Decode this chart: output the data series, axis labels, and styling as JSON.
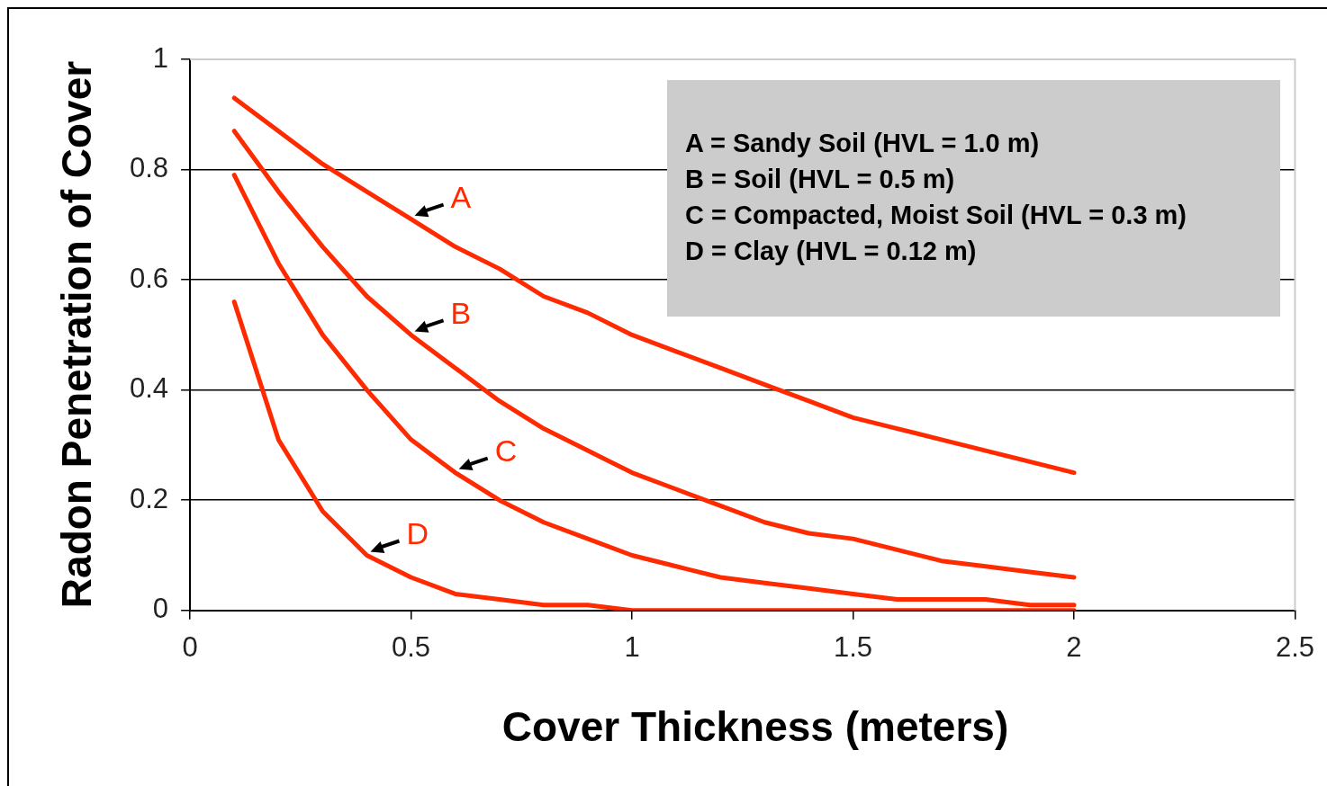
{
  "chart_data": {
    "type": "line",
    "xlabel": "Cover Thickness (meters)",
    "ylabel": "Radon Penetration of Cover",
    "x": [
      0.1,
      0.2,
      0.3,
      0.4,
      0.5,
      0.6,
      0.7,
      0.8,
      0.9,
      1.0,
      1.1,
      1.2,
      1.3,
      1.4,
      1.5,
      1.6,
      1.7,
      1.8,
      1.9,
      2.0
    ],
    "series": [
      {
        "name": "A",
        "color": "#ff2a00",
        "values": [
          0.93,
          0.87,
          0.81,
          0.76,
          0.71,
          0.66,
          0.62,
          0.57,
          0.54,
          0.5,
          0.47,
          0.44,
          0.41,
          0.38,
          0.35,
          0.33,
          0.31,
          0.29,
          0.27,
          0.25
        ]
      },
      {
        "name": "B",
        "color": "#ff2a00",
        "values": [
          0.87,
          0.76,
          0.66,
          0.57,
          0.5,
          0.44,
          0.38,
          0.33,
          0.29,
          0.25,
          0.22,
          0.19,
          0.16,
          0.14,
          0.13,
          0.11,
          0.09,
          0.08,
          0.07,
          0.06
        ]
      },
      {
        "name": "C",
        "color": "#ff2a00",
        "values": [
          0.79,
          0.63,
          0.5,
          0.4,
          0.31,
          0.25,
          0.2,
          0.16,
          0.13,
          0.1,
          0.08,
          0.06,
          0.05,
          0.04,
          0.03,
          0.02,
          0.02,
          0.02,
          0.01,
          0.01
        ]
      },
      {
        "name": "D",
        "color": "#ff2a00",
        "values": [
          0.56,
          0.31,
          0.18,
          0.1,
          0.06,
          0.03,
          0.02,
          0.01,
          0.01,
          0,
          0,
          0,
          0,
          0,
          0,
          0,
          0,
          0,
          0,
          0
        ]
      }
    ],
    "xlim": [
      0,
      2.5
    ],
    "xticks": [
      0,
      0.5,
      1,
      1.5,
      2,
      2.5
    ],
    "ylim": [
      0,
      1
    ],
    "yticks": [
      0,
      0.2,
      0.4,
      0.6,
      0.8,
      1
    ],
    "grid": "y",
    "legend": false,
    "marker": "none",
    "line_style": "solid",
    "annotations": [
      "A = Sandy Soil (HVL = 1.0 m)",
      "B = Soil (HVL = 0.5 m)",
      "C = Compacted, Moist Soil (HVL = 0.3 m)",
      "D = Clay (HVL = 0.12 m)"
    ]
  }
}
